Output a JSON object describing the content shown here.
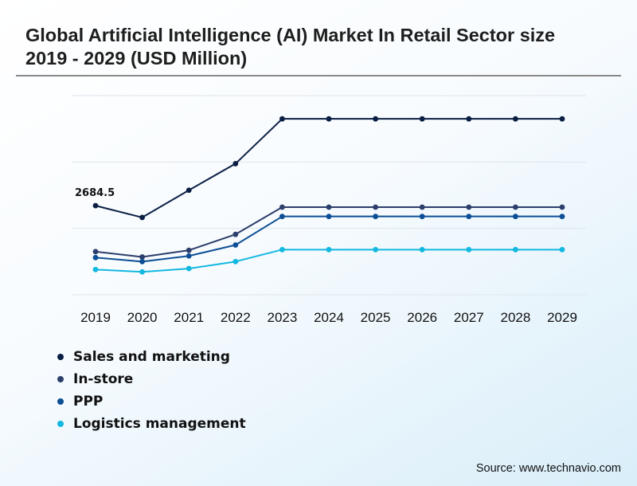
{
  "title": "Global Artificial Intelligence (AI) Market In Retail Sector size 2019 - 2029 (USD Million)",
  "source": "Source: www.technavio.com",
  "chart_data": {
    "type": "line",
    "title": "Global Artificial Intelligence (AI) Market In Retail Sector size 2019 - 2029 (USD Million)",
    "xlabel": "",
    "ylabel": "",
    "x": [
      "2019",
      "2020",
      "2021",
      "2022",
      "2023",
      "2024",
      "2025",
      "2026",
      "2027",
      "2028",
      "2029"
    ],
    "ylim": [
      0,
      6000
    ],
    "grid": true,
    "legend_position": "bottom-left",
    "series": [
      {
        "name": "Sales and marketing",
        "color": "#0b1f45",
        "values": [
          2684.5,
          2330,
          3150,
          3950,
          5300,
          5300,
          5300,
          5300,
          5300,
          5300,
          5300
        ]
      },
      {
        "name": "In-store",
        "color": "#2c3e6b",
        "values": [
          1300,
          1140,
          1340,
          1820,
          2640,
          2640,
          2640,
          2640,
          2640,
          2640,
          2640
        ]
      },
      {
        "name": "PPP",
        "color": "#0d4f95",
        "values": [
          1120,
          1000,
          1170,
          1500,
          2360,
          2360,
          2360,
          2360,
          2360,
          2360,
          2360
        ]
      },
      {
        "name": "Logistics management",
        "color": "#13b8e0",
        "values": [
          760,
          690,
          790,
          1000,
          1360,
          1360,
          1360,
          1360,
          1360,
          1360,
          1360
        ]
      }
    ],
    "annotations": [
      {
        "series": 0,
        "index": 0,
        "text": "2684.5"
      }
    ]
  }
}
